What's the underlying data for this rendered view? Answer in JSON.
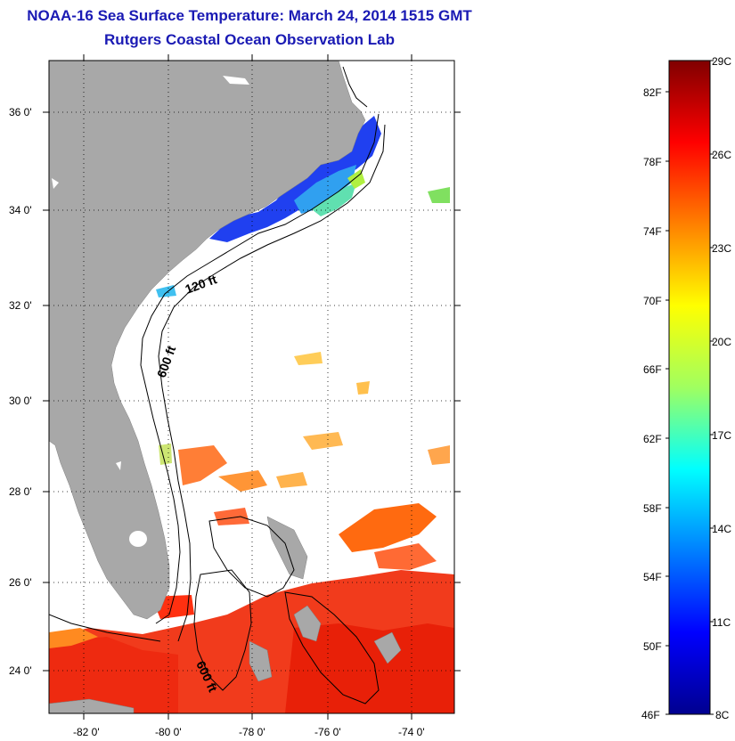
{
  "title": "NOAA-16 Sea Surface Temperature:  March 24, 2014 1515 GMT",
  "subtitle": "Rutgers Coastal Ocean Observation Lab",
  "map": {
    "lat_labels": [
      "36 0'",
      "34 0'",
      "32 0'",
      "30 0'",
      "28 0'",
      "26 0'",
      "24 0'"
    ],
    "lon_labels": [
      "-82 0'",
      "-80 0'",
      "-78 0'",
      "-76 0'",
      "-74 0'"
    ],
    "contour_labels": [
      "120 ft",
      "600 ft",
      "600 ft"
    ],
    "land_color": "#a8a8a8",
    "colormap": "jet"
  },
  "colorbar": {
    "fahrenheit_labels": [
      "82F",
      "78F",
      "74F",
      "70F",
      "66F",
      "62F",
      "58F",
      "54F",
      "50F",
      "46F"
    ],
    "celsius_labels": [
      "29C",
      "26C",
      "23C",
      "20C",
      "17C",
      "14C",
      "11C",
      "8C"
    ],
    "min_c": 8,
    "max_c": 29
  }
}
